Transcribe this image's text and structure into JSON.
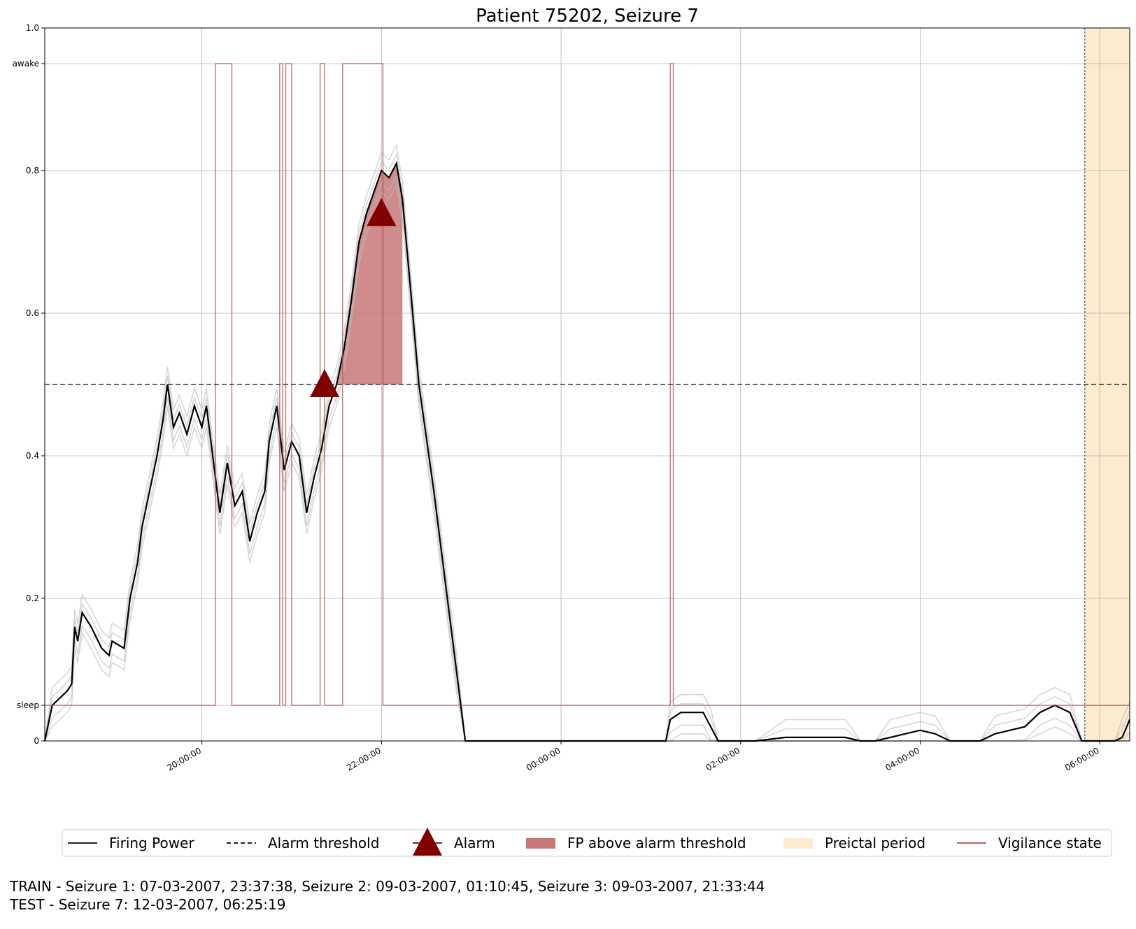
{
  "chart_data": {
    "type": "line",
    "title": "Patient 75202, Seizure 7",
    "xlabel": "",
    "ylabel": "",
    "x_axis": {
      "kind": "time",
      "start": "2007-03-11T18:15:00",
      "end": "2007-03-12T06:20:00",
      "tick_labels": [
        "20:00:00",
        "22:00:00",
        "00:00:00",
        "02:00:00",
        "04:00:00",
        "06:00:00"
      ],
      "tick_times": [
        "2007-03-11T20:00:00",
        "2007-03-11T22:00:00",
        "2007-03-12T00:00:00",
        "2007-03-12T02:00:00",
        "2007-03-12T04:00:00",
        "2007-03-12T06:00:00"
      ]
    },
    "y_axis": {
      "ylim": [
        0,
        1
      ],
      "tick_values": [
        0,
        0.2,
        0.4,
        0.6,
        0.8,
        1.0
      ],
      "tick_labels": [
        "0",
        "0.2",
        "0.4",
        "0.6",
        "0.8",
        "1.0"
      ],
      "extra_ticks": [
        {
          "value": 0.05,
          "label": "sleep"
        },
        {
          "value": 0.95,
          "label": "awake"
        }
      ]
    },
    "grid": true,
    "legend_placement": "bottom-center",
    "alarm_threshold": 0.5,
    "series": [
      {
        "name": "Firing Power",
        "color": "#000000",
        "points": [
          [
            "2007-03-11T18:15:00",
            0.0
          ],
          [
            "2007-03-11T18:20:00",
            0.05
          ],
          [
            "2007-03-11T18:30:00",
            0.07
          ],
          [
            "2007-03-11T18:33:00",
            0.08
          ],
          [
            "2007-03-11T18:35:00",
            0.16
          ],
          [
            "2007-03-11T18:37:00",
            0.14
          ],
          [
            "2007-03-11T18:40:00",
            0.18
          ],
          [
            "2007-03-11T18:46:00",
            0.16
          ],
          [
            "2007-03-11T18:53:00",
            0.13
          ],
          [
            "2007-03-11T18:58:00",
            0.12
          ],
          [
            "2007-03-11T19:00:00",
            0.14
          ],
          [
            "2007-03-11T19:08:00",
            0.13
          ],
          [
            "2007-03-11T19:12:00",
            0.2
          ],
          [
            "2007-03-11T19:17:00",
            0.25
          ],
          [
            "2007-03-11T19:20:00",
            0.3
          ],
          [
            "2007-03-11T19:25:00",
            0.35
          ],
          [
            "2007-03-11T19:30:00",
            0.4
          ],
          [
            "2007-03-11T19:34:00",
            0.45
          ],
          [
            "2007-03-11T19:37:00",
            0.5
          ],
          [
            "2007-03-11T19:41:00",
            0.44
          ],
          [
            "2007-03-11T19:45:00",
            0.46
          ],
          [
            "2007-03-11T19:50:00",
            0.43
          ],
          [
            "2007-03-11T19:55:00",
            0.47
          ],
          [
            "2007-03-11T20:00:00",
            0.44
          ],
          [
            "2007-03-11T20:03:00",
            0.47
          ],
          [
            "2007-03-11T20:06:00",
            0.42
          ],
          [
            "2007-03-11T20:12:00",
            0.32
          ],
          [
            "2007-03-11T20:17:00",
            0.39
          ],
          [
            "2007-03-11T20:22:00",
            0.33
          ],
          [
            "2007-03-11T20:27:00",
            0.35
          ],
          [
            "2007-03-11T20:32:00",
            0.28
          ],
          [
            "2007-03-11T20:37:00",
            0.32
          ],
          [
            "2007-03-11T20:42:00",
            0.35
          ],
          [
            "2007-03-11T20:45:00",
            0.42
          ],
          [
            "2007-03-11T20:50:00",
            0.47
          ],
          [
            "2007-03-11T20:55:00",
            0.38
          ],
          [
            "2007-03-11T21:00:00",
            0.42
          ],
          [
            "2007-03-11T21:05:00",
            0.4
          ],
          [
            "2007-03-11T21:10:00",
            0.32
          ],
          [
            "2007-03-11T21:15:00",
            0.37
          ],
          [
            "2007-03-11T21:20:00",
            0.41
          ],
          [
            "2007-03-11T21:25:00",
            0.47
          ],
          [
            "2007-03-11T21:30:00",
            0.5
          ],
          [
            "2007-03-11T21:35:00",
            0.55
          ],
          [
            "2007-03-11T21:40:00",
            0.62
          ],
          [
            "2007-03-11T21:45:00",
            0.7
          ],
          [
            "2007-03-11T21:50:00",
            0.74
          ],
          [
            "2007-03-11T21:55:00",
            0.77
          ],
          [
            "2007-03-11T22:00:00",
            0.8
          ],
          [
            "2007-03-11T22:05:00",
            0.79
          ],
          [
            "2007-03-11T22:10:00",
            0.81
          ],
          [
            "2007-03-11T22:14:00",
            0.76
          ],
          [
            "2007-03-11T22:20:00",
            0.62
          ],
          [
            "2007-03-11T22:25:00",
            0.5
          ],
          [
            "2007-03-11T22:35:00",
            0.35
          ],
          [
            "2007-03-11T22:50:00",
            0.1
          ],
          [
            "2007-03-11T22:56:00",
            0.0
          ],
          [
            "2007-03-12T01:10:00",
            0.0
          ],
          [
            "2007-03-12T01:13:00",
            0.03
          ],
          [
            "2007-03-12T01:20:00",
            0.04
          ],
          [
            "2007-03-12T01:35:00",
            0.04
          ],
          [
            "2007-03-12T01:40:00",
            0.02
          ],
          [
            "2007-03-12T01:45:00",
            0.0
          ],
          [
            "2007-03-12T02:10:00",
            0.0
          ],
          [
            "2007-03-12T02:30:00",
            0.005
          ],
          [
            "2007-03-12T03:10:00",
            0.005
          ],
          [
            "2007-03-12T03:20:00",
            0.0
          ],
          [
            "2007-03-12T03:30:00",
            0.0
          ],
          [
            "2007-03-12T03:40:00",
            0.005
          ],
          [
            "2007-03-12T03:50:00",
            0.01
          ],
          [
            "2007-03-12T04:00:00",
            0.015
          ],
          [
            "2007-03-12T04:10:00",
            0.01
          ],
          [
            "2007-03-12T04:20:00",
            0.0
          ],
          [
            "2007-03-12T04:40:00",
            0.0
          ],
          [
            "2007-03-12T04:50:00",
            0.01
          ],
          [
            "2007-03-12T05:00:00",
            0.015
          ],
          [
            "2007-03-12T05:10:00",
            0.02
          ],
          [
            "2007-03-12T05:20:00",
            0.04
          ],
          [
            "2007-03-12T05:30:00",
            0.05
          ],
          [
            "2007-03-12T05:40:00",
            0.04
          ],
          [
            "2007-03-12T05:48:00",
            0.0
          ],
          [
            "2007-03-12T06:10:00",
            0.0
          ],
          [
            "2007-03-12T06:15:00",
            0.005
          ],
          [
            "2007-03-12T06:20:00",
            0.03
          ]
        ]
      },
      {
        "name": "Alarm threshold",
        "color": "#000000",
        "value": 0.5
      },
      {
        "name": "Alarm",
        "color": "#800000",
        "points": [
          [
            "2007-03-11T21:22:00",
            0.5
          ],
          [
            "2007-03-11T22:00:00",
            0.74
          ]
        ]
      },
      {
        "name": "FP above alarm threshold",
        "color": "#c87878",
        "start": "2007-03-11T21:25:00",
        "end": "2007-03-11T22:14:00"
      },
      {
        "name": "Preictal period",
        "color": "#fdebcf",
        "start": "2007-03-12T05:50:00",
        "end": "2007-03-12T06:20:00"
      },
      {
        "name": "Vigilance state",
        "color": "#b04848",
        "awake_intervals": [
          [
            "2007-03-11T20:09:00",
            "2007-03-11T20:20:00"
          ],
          [
            "2007-03-11T20:52:00",
            "2007-03-11T20:54:00"
          ],
          [
            "2007-03-11T20:56:00",
            "2007-03-11T21:00:00"
          ],
          [
            "2007-03-11T21:19:00",
            "2007-03-11T21:22:00"
          ],
          [
            "2007-03-11T21:34:00",
            "2007-03-11T22:01:00"
          ],
          [
            "2007-03-12T01:13:00",
            "2007-03-12T01:15:00"
          ]
        ]
      }
    ]
  },
  "legend": [
    {
      "label": "Firing Power",
      "kind": "line",
      "color": "#000000"
    },
    {
      "label": "Alarm threshold",
      "kind": "dashed",
      "color": "#000000"
    },
    {
      "label": "Alarm",
      "kind": "marker",
      "color": "#800000"
    },
    {
      "label": "FP above alarm threshold",
      "kind": "patch",
      "color": "#c87878"
    },
    {
      "label": "Preictal period",
      "kind": "patch",
      "color": "#fdebcf"
    },
    {
      "label": "Vigilance state",
      "kind": "line",
      "color": "#b04848"
    }
  ],
  "footnote": {
    "line1": "TRAIN - Seizure 1: 07-03-2007, 23:37:38, Seizure 2: 09-03-2007, 01:10:45, Seizure 3: 09-03-2007, 21:33:44",
    "line2": "TEST - Seizure 7: 12-03-2007, 06:25:19"
  }
}
